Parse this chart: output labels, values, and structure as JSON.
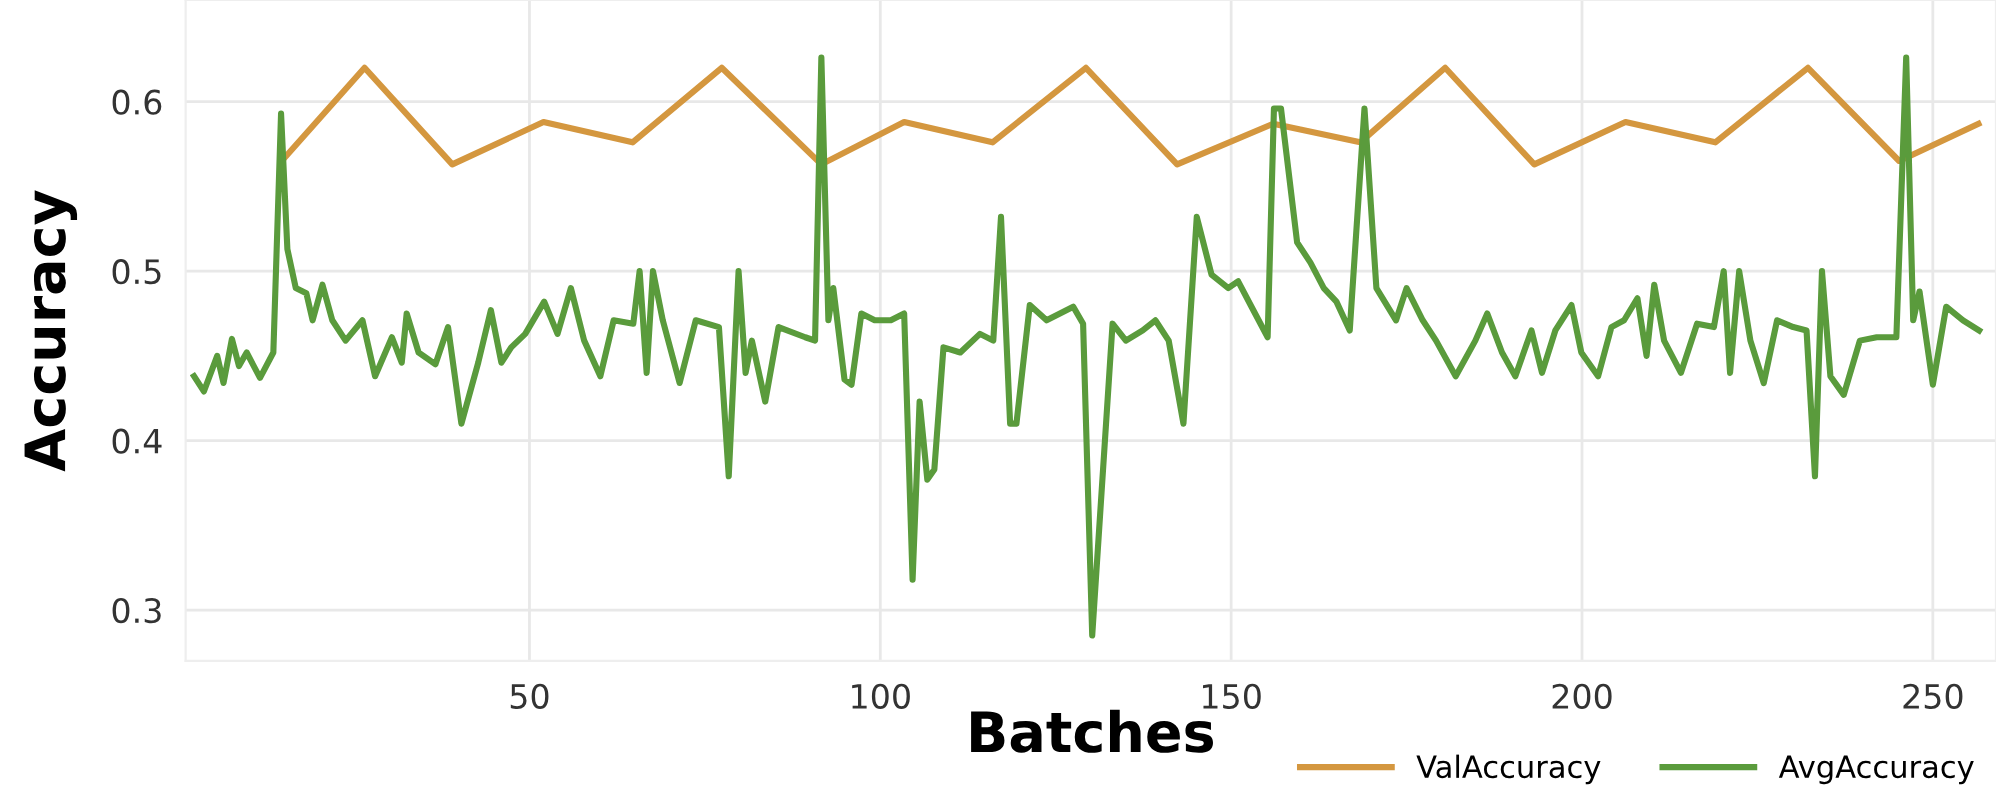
{
  "chart_data": {
    "type": "line",
    "xlabel": "Batches",
    "ylabel": "Accuracy",
    "xlim": [
      1,
      259
    ],
    "ylim": [
      0.27,
      0.66
    ],
    "xticks": [
      50,
      100,
      150,
      200,
      250
    ],
    "yticks": [
      0.3,
      0.4,
      0.5,
      0.6
    ],
    "grid": true,
    "legend": "bottom right",
    "marker": "none",
    "line_style": "solid",
    "series": [
      {
        "name": "ValAccuracy",
        "color": "#d4973f",
        "x": [
          14.7,
          26.5,
          39.0,
          52.0,
          64.7,
          77.4,
          91.6,
          103.4,
          116.0,
          129.3,
          142.3,
          156.0,
          168.4,
          180.5,
          193.2,
          206.2,
          219.0,
          232.2,
          245.2,
          256.5
        ],
        "values": [
          0.565,
          0.62,
          0.563,
          0.588,
          0.576,
          0.62,
          0.563,
          0.588,
          0.576,
          0.62,
          0.563,
          0.587,
          0.576,
          0.62,
          0.563,
          0.588,
          0.576,
          0.62,
          0.565,
          0.587
        ]
      },
      {
        "name": "AvgAccuracy",
        "color": "#5a9b3c",
        "x": [
          2.2,
          3.6,
          5.5,
          6.4,
          7.6,
          8.6,
          9.7,
          11.6,
          13.5,
          14.6,
          15.5,
          16.7,
          18.2,
          19.1,
          20.5,
          21.9,
          23.8,
          26.2,
          28.0,
          30.4,
          31.8,
          32.5,
          34.2,
          36.6,
          38.4,
          40.3,
          42.7,
          44.5,
          46.0,
          47.4,
          49.4,
          52.1,
          54.0,
          55.9,
          57.8,
          60.1,
          62.0,
          64.8,
          65.7,
          66.7,
          67.6,
          69.0,
          71.4,
          73.7,
          77.0,
          78.4,
          79.8,
          80.8,
          81.7,
          83.6,
          85.5,
          89.3,
          90.7,
          91.6,
          92.6,
          93.3,
          94.9,
          95.9,
          97.3,
          99.2,
          101.5,
          103.4,
          104.6,
          105.6,
          106.7,
          107.7,
          109.0,
          111.4,
          114.2,
          116.1,
          117.2,
          118.5,
          119.4,
          121.3,
          123.7,
          125.6,
          127.5,
          128.9,
          130.2,
          133.1,
          135.0,
          137.4,
          139.2,
          141.1,
          143.2,
          145.1,
          147.2,
          149.6,
          151.0,
          152.9,
          155.2,
          156.1,
          157.1,
          159.4,
          161.3,
          163.2,
          165.0,
          166.9,
          169.0,
          170.7,
          173.5,
          175.0,
          177.3,
          179.2,
          182.0,
          184.8,
          186.5,
          188.6,
          190.5,
          192.8,
          194.3,
          196.2,
          198.5,
          199.9,
          202.3,
          204.2,
          206.0,
          207.9,
          209.2,
          210.3,
          211.7,
          214.1,
          216.4,
          218.8,
          220.2,
          221.1,
          222.4,
          224.0,
          225.9,
          227.8,
          230.1,
          232.0,
          233.2,
          234.2,
          235.4,
          237.3,
          239.6,
          242.0,
          244.8,
          246.2,
          247.2,
          248.1,
          250.0,
          251.9,
          254.3,
          256.6
        ],
        "values": [
          0.438,
          0.429,
          0.45,
          0.434,
          0.46,
          0.444,
          0.452,
          0.437,
          0.452,
          0.593,
          0.513,
          0.49,
          0.487,
          0.471,
          0.492,
          0.471,
          0.459,
          0.471,
          0.438,
          0.461,
          0.446,
          0.475,
          0.452,
          0.445,
          0.467,
          0.41,
          0.446,
          0.477,
          0.446,
          0.455,
          0.463,
          0.482,
          0.463,
          0.49,
          0.459,
          0.438,
          0.471,
          0.469,
          0.5,
          0.44,
          0.5,
          0.471,
          0.434,
          0.471,
          0.467,
          0.379,
          0.5,
          0.44,
          0.459,
          0.423,
          0.467,
          0.461,
          0.459,
          0.626,
          0.471,
          0.49,
          0.436,
          0.433,
          0.475,
          0.471,
          0.471,
          0.475,
          0.318,
          0.423,
          0.377,
          0.383,
          0.455,
          0.452,
          0.463,
          0.459,
          0.532,
          0.41,
          0.41,
          0.48,
          0.471,
          0.475,
          0.479,
          0.469,
          0.285,
          0.469,
          0.459,
          0.465,
          0.471,
          0.459,
          0.41,
          0.532,
          0.498,
          0.49,
          0.494,
          0.479,
          0.461,
          0.596,
          0.596,
          0.517,
          0.505,
          0.49,
          0.482,
          0.465,
          0.596,
          0.49,
          0.471,
          0.49,
          0.471,
          0.459,
          0.438,
          0.459,
          0.475,
          0.452,
          0.438,
          0.465,
          0.44,
          0.465,
          0.48,
          0.452,
          0.438,
          0.467,
          0.471,
          0.484,
          0.45,
          0.492,
          0.459,
          0.44,
          0.469,
          0.467,
          0.5,
          0.44,
          0.5,
          0.459,
          0.434,
          0.471,
          0.467,
          0.465,
          0.379,
          0.5,
          0.438,
          0.427,
          0.459,
          0.461,
          0.461,
          0.626,
          0.471,
          0.488,
          0.433,
          0.479,
          0.471,
          0.465
        ]
      }
    ]
  }
}
